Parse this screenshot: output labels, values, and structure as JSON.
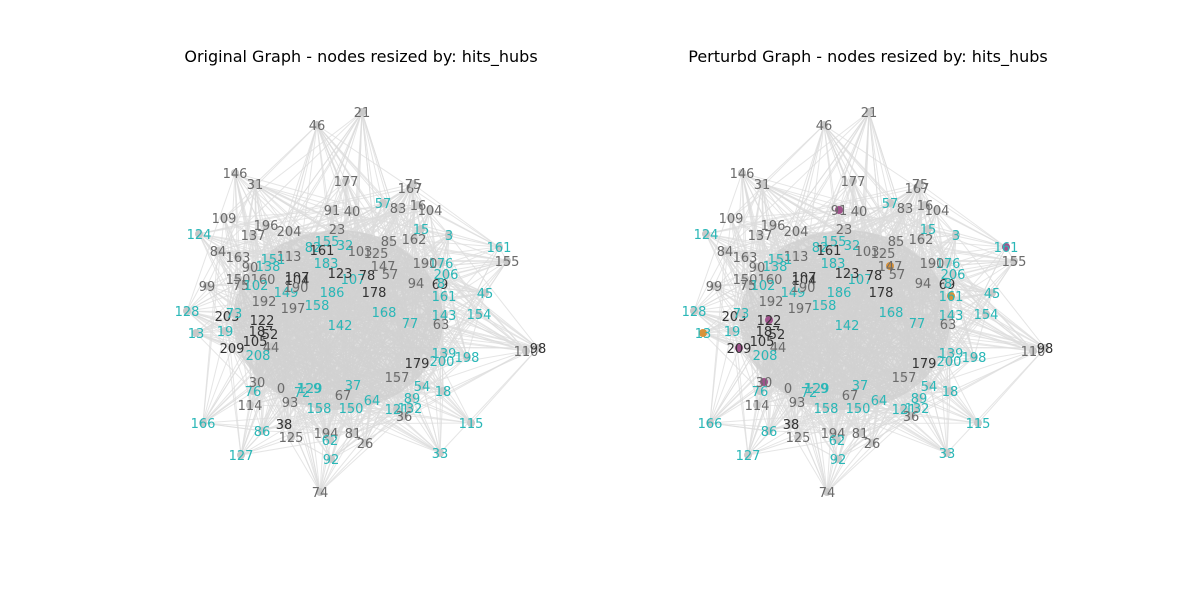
{
  "panels": [
    {
      "title": "Original Graph - nodes resized by: hits_hubs",
      "labels": [
        "21",
        "46",
        "177",
        "167",
        "75",
        "146",
        "31",
        "57",
        "83",
        "16",
        "104",
        "109",
        "196",
        "91",
        "40",
        "124",
        "204",
        "137",
        "23",
        "85",
        "162",
        "15",
        "3",
        "161",
        "155",
        "84",
        "163",
        "90",
        "113",
        "151",
        "82",
        "155",
        "161",
        "32",
        "103",
        "125",
        "176",
        "206",
        "45",
        "99",
        "138",
        "150",
        "160",
        "75",
        "102",
        "197",
        "183",
        "107",
        "78",
        "147",
        "57",
        "190",
        "94",
        "149",
        "104",
        "69",
        "190",
        "186",
        "178",
        "123",
        "8",
        "161",
        "128",
        "203",
        "73",
        "192",
        "122",
        "158",
        "197",
        "168",
        "143",
        "154",
        "13",
        "19",
        "187",
        "105",
        "52",
        "142",
        "77",
        "63",
        "209",
        "44",
        "208",
        "179",
        "139",
        "198",
        "110",
        "98",
        "200",
        "129",
        "157",
        "18",
        "114",
        "76",
        "30",
        "0",
        "72",
        "129",
        "67",
        "37",
        "54",
        "89",
        "166",
        "127",
        "38",
        "125",
        "86",
        "194",
        "81",
        "62",
        "93",
        "158",
        "150",
        "64",
        "121",
        "132",
        "36",
        "115",
        "33",
        "92",
        "26",
        "74"
      ]
    },
    {
      "title": "Perturbd Graph - nodes resized by: hits_hubs",
      "labels": [
        "21",
        "46",
        "177",
        "167",
        "75",
        "146",
        "31",
        "57",
        "83",
        "16",
        "104",
        "109",
        "196",
        "91",
        "40",
        "124",
        "204",
        "137",
        "23",
        "85",
        "162",
        "15",
        "3",
        "161",
        "155",
        "84",
        "163",
        "90",
        "113",
        "151",
        "82",
        "155",
        "161",
        "32",
        "103",
        "125",
        "176",
        "206",
        "45",
        "99",
        "138",
        "150",
        "160",
        "75",
        "102",
        "197",
        "183",
        "107",
        "78",
        "147",
        "57",
        "190",
        "94",
        "149",
        "104",
        "69",
        "190",
        "186",
        "178",
        "123",
        "8",
        "161",
        "128",
        "203",
        "73",
        "192",
        "122",
        "158",
        "197",
        "168",
        "143",
        "154",
        "13",
        "19",
        "187",
        "105",
        "52",
        "142",
        "77",
        "63",
        "209",
        "44",
        "208",
        "179",
        "139",
        "198",
        "110",
        "98",
        "200",
        "129",
        "157",
        "18",
        "114",
        "76",
        "30",
        "0",
        "72",
        "129",
        "67",
        "37",
        "54",
        "89",
        "166",
        "127",
        "38",
        "125",
        "86",
        "194",
        "81",
        "62",
        "93",
        "158",
        "150",
        "64",
        "121",
        "132",
        "36",
        "115",
        "33",
        "92",
        "26",
        "74"
      ]
    }
  ],
  "colors": {
    "edge": "#dcdcdc",
    "node": "#c9c9c9",
    "label": "#6b6b6b",
    "label_accent": "#2ab7b7",
    "node_highlight_purple": "#a0528c",
    "node_highlight_orange": "#d8923a"
  }
}
